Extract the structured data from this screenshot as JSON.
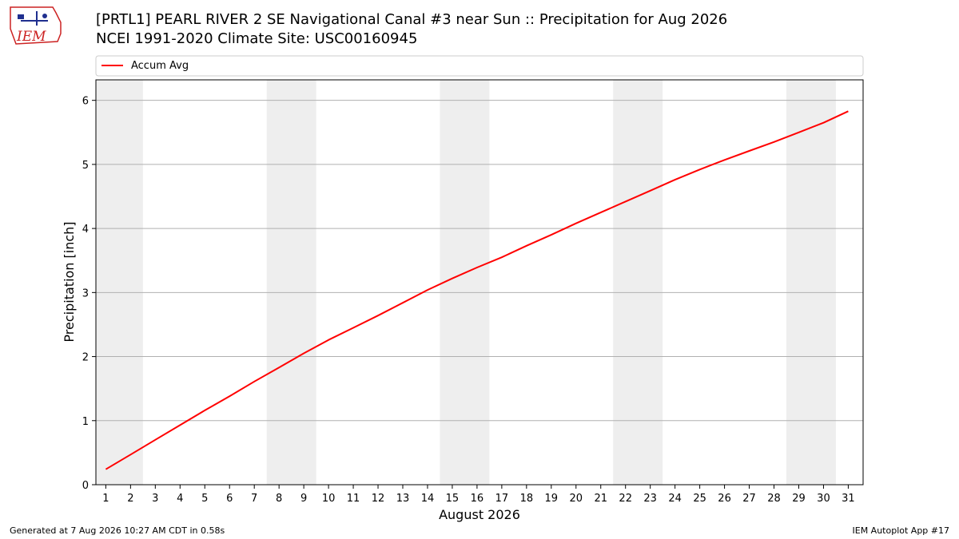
{
  "header": {
    "logo_text": "IEM",
    "title_line1": "[PRTL1] PEARL RIVER 2 SE Navigational Canal #3 near Sun :: Precipitation for Aug 2026",
    "title_line2": "NCEI 1991-2020 Climate Site: USC00160945"
  },
  "footer": {
    "left": "Generated at 7 Aug 2026 10:27 AM CDT in 0.58s",
    "right": "IEM Autoplot App #17"
  },
  "colors": {
    "series_line": "#ff0000",
    "weekend_band": "#eeeeee",
    "grid": "#b0b0b0",
    "logo": "#cc2222"
  },
  "chart_data": {
    "type": "line",
    "xlabel": "August 2026",
    "ylabel": "Precipitation [inch]",
    "x": [
      1,
      2,
      3,
      4,
      5,
      6,
      7,
      8,
      9,
      10,
      11,
      12,
      13,
      14,
      15,
      16,
      17,
      18,
      19,
      20,
      21,
      22,
      23,
      24,
      25,
      26,
      27,
      28,
      29,
      30,
      31
    ],
    "x_tick_labels": [
      "1",
      "2",
      "3",
      "4",
      "5",
      "6",
      "7",
      "8",
      "9",
      "10",
      "11",
      "12",
      "13",
      "14",
      "15",
      "16",
      "17",
      "18",
      "19",
      "20",
      "21",
      "22",
      "23",
      "24",
      "25",
      "26",
      "27",
      "28",
      "29",
      "30",
      "31"
    ],
    "y_ticks": [
      0,
      1,
      2,
      3,
      4,
      5,
      6
    ],
    "ylim": [
      0,
      6.32
    ],
    "xlim": [
      0.6,
      31.6
    ],
    "grid": "horizontal",
    "legend_position": "top",
    "shaded_day_ranges": [
      [
        0.6,
        2.5
      ],
      [
        7.5,
        9.5
      ],
      [
        14.5,
        16.5
      ],
      [
        21.5,
        23.5
      ],
      [
        28.5,
        30.5
      ]
    ],
    "series": [
      {
        "name": "Accum Avg",
        "values": [
          0.24,
          0.47,
          0.7,
          0.93,
          1.16,
          1.38,
          1.61,
          1.83,
          2.05,
          2.26,
          2.45,
          2.64,
          2.84,
          3.04,
          3.22,
          3.39,
          3.55,
          3.73,
          3.9,
          4.08,
          4.25,
          4.42,
          4.59,
          4.76,
          4.92,
          5.07,
          5.21,
          5.35,
          5.5,
          5.65,
          5.83
        ]
      }
    ]
  }
}
